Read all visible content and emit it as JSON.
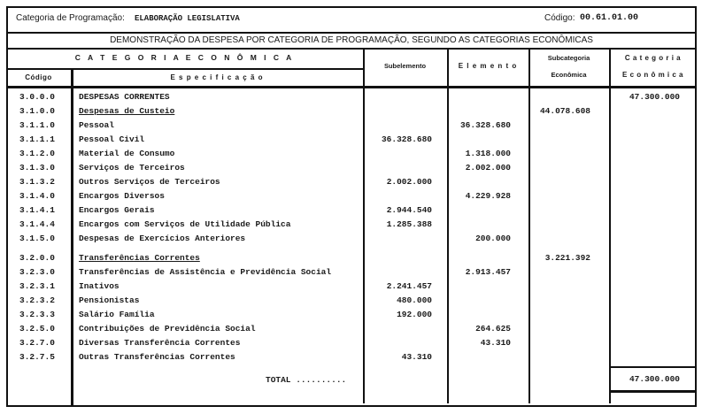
{
  "header": {
    "category_label": "Categoria de Programação:",
    "category_value": "ELABORAÇÃO LEGISLATIVA",
    "code_label": "Código:",
    "code_value": "00.61.01.00",
    "title": "DEMONSTRAÇÃO DA DESPESA POR CATEGORIA DE PROGRAMAÇÃO, SEGUNDO AS CATEGORIAS ECONÔMICAS"
  },
  "columns": {
    "group": "C A T E G O R I A   E C O N Ô M I C A",
    "codigo": "Código",
    "especificacao": "E s p e c i f i c a ç ã o",
    "subelemento": "Subelemento",
    "elemento": "E l e m e n t o",
    "subcategoria_1": "Subcategoria",
    "subcategoria_2": "Econômica",
    "categoria_1": "C a t e g o r i a",
    "categoria_2": "E c o n ô m i c a"
  },
  "rows": [
    {
      "codigo": "3.0.0.0",
      "especificacao": "DESPESAS CORRENTES",
      "subelemento": "",
      "elemento": "",
      "subcategoria": "",
      "categoria": "47.300.000"
    },
    {
      "codigo": "3.1.0.0",
      "especificacao": "Despesas de Custeio",
      "underline": true,
      "subelemento": "",
      "elemento": "",
      "subcategoria": "44.078.608",
      "categoria": ""
    },
    {
      "codigo": "3.1.1.0",
      "especificacao": "Pessoal",
      "subelemento": "",
      "elemento": "36.328.680",
      "subcategoria": "",
      "categoria": ""
    },
    {
      "codigo": "3.1.1.1",
      "especificacao": "Pessoal Civil",
      "subelemento": "36.328.680",
      "elemento": "",
      "subcategoria": "",
      "categoria": ""
    },
    {
      "codigo": "3.1.2.0",
      "especificacao": "Material de Consumo",
      "subelemento": "",
      "elemento": "1.318.000",
      "subcategoria": "",
      "categoria": ""
    },
    {
      "codigo": "3.1.3.0",
      "especificacao": "Serviços de Terceiros",
      "subelemento": "",
      "elemento": "2.002.000",
      "subcategoria": "",
      "categoria": ""
    },
    {
      "codigo": "3.1.3.2",
      "especificacao": "Outros Serviços de Terceiros",
      "subelemento": "2.002.000",
      "elemento": "",
      "subcategoria": "",
      "categoria": ""
    },
    {
      "codigo": "3.1.4.0",
      "especificacao": "Encargos Diversos",
      "subelemento": "",
      "elemento": "4.229.928",
      "subcategoria": "",
      "categoria": ""
    },
    {
      "codigo": "3.1.4.1",
      "especificacao": "Encargos Gerais",
      "subelemento": "2.944.540",
      "elemento": "",
      "subcategoria": "",
      "categoria": ""
    },
    {
      "codigo": "3.1.4.4",
      "especificacao": "Encargos com Serviços de Utilidade Pública",
      "subelemento": "1.285.388",
      "elemento": "",
      "subcategoria": "",
      "categoria": ""
    },
    {
      "codigo": "3.1.5.0",
      "especificacao": "Despesas de Exercícios Anteriores",
      "subelemento": "",
      "elemento": "200.000",
      "subcategoria": "",
      "categoria": ""
    },
    {
      "codigo": "3.2.0.0",
      "especificacao": "Transferências Correntes",
      "underline": true,
      "subelemento": "",
      "elemento": "",
      "subcategoria": "3.221.392",
      "categoria": ""
    },
    {
      "codigo": "3.2.3.0",
      "especificacao": "Transferências de Assistência e Previdência Social",
      "subelemento": "",
      "elemento": "2.913.457",
      "subcategoria": "",
      "categoria": ""
    },
    {
      "codigo": "3.2.3.1",
      "especificacao": "Inativos",
      "subelemento": "2.241.457",
      "elemento": "",
      "subcategoria": "",
      "categoria": ""
    },
    {
      "codigo": "3.2.3.2",
      "especificacao": "Pensionistas",
      "subelemento": "480.000",
      "elemento": "",
      "subcategoria": "",
      "categoria": ""
    },
    {
      "codigo": "3.2.3.3",
      "especificacao": "Salário Família",
      "subelemento": "192.000",
      "elemento": "",
      "subcategoria": "",
      "categoria": ""
    },
    {
      "codigo": "3.2.5.0",
      "especificacao": "Contribuições de Previdência Social",
      "subelemento": "",
      "elemento": "264.625",
      "subcategoria": "",
      "categoria": ""
    },
    {
      "codigo": "3.2.7.0",
      "especificacao": "Diversas Transferência Correntes",
      "subelemento": "",
      "elemento": "43.310",
      "subcategoria": "",
      "categoria": ""
    },
    {
      "codigo": "3.2.7.5",
      "especificacao": "Outras Transferências Correntes",
      "subelemento": "43.310",
      "elemento": "",
      "subcategoria": "",
      "categoria": ""
    }
  ],
  "total": {
    "label": "TOTAL ..........",
    "value": "47.300.000"
  }
}
